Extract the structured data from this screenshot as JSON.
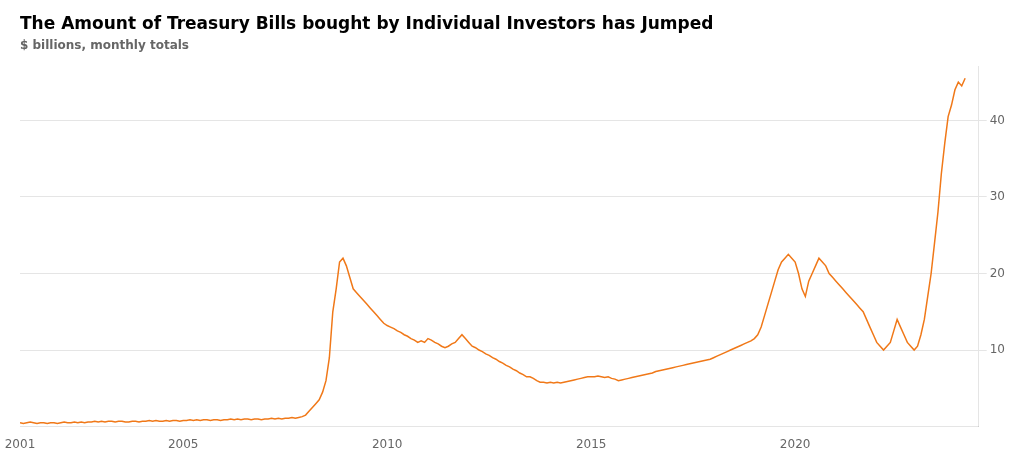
{
  "chart_data": {
    "type": "line",
    "title": "The Amount of Treasury Bills bought by Individual Investors has Jumped",
    "subtitle": "$ billions, monthly totals",
    "color": "#F07818",
    "grid": "y",
    "xlim": [
      2001.0,
      2024.5
    ],
    "xticks": [
      2001,
      2005,
      2010,
      2015,
      2020
    ],
    "ylim": [
      0,
      47
    ],
    "yticks": [
      10,
      20,
      30,
      40
    ],
    "x": [
      2001.0,
      2001.083,
      2001.167,
      2001.25,
      2001.333,
      2001.417,
      2001.5,
      2001.583,
      2001.667,
      2001.75,
      2001.833,
      2001.917,
      2002.0,
      2002.083,
      2002.167,
      2002.25,
      2002.333,
      2002.417,
      2002.5,
      2002.583,
      2002.667,
      2002.75,
      2002.833,
      2002.917,
      2003.0,
      2003.083,
      2003.167,
      2003.25,
      2003.333,
      2003.417,
      2003.5,
      2003.583,
      2003.667,
      2003.75,
      2003.833,
      2003.917,
      2004.0,
      2004.083,
      2004.167,
      2004.25,
      2004.333,
      2004.417,
      2004.5,
      2004.583,
      2004.667,
      2004.75,
      2004.833,
      2004.917,
      2005.0,
      2005.083,
      2005.167,
      2005.25,
      2005.333,
      2005.417,
      2005.5,
      2005.583,
      2005.667,
      2005.75,
      2005.833,
      2005.917,
      2006.0,
      2006.083,
      2006.167,
      2006.25,
      2006.333,
      2006.417,
      2006.5,
      2006.583,
      2006.667,
      2006.75,
      2006.833,
      2006.917,
      2007.0,
      2007.083,
      2007.167,
      2007.25,
      2007.333,
      2007.417,
      2007.5,
      2007.583,
      2007.667,
      2007.75,
      2007.833,
      2007.917,
      2008.0,
      2008.083,
      2008.167,
      2008.25,
      2008.333,
      2008.417,
      2008.5,
      2008.583,
      2008.667,
      2008.75,
      2008.833,
      2008.917,
      2009.0,
      2009.083,
      2009.167,
      2009.25,
      2009.333,
      2009.417,
      2009.5,
      2009.583,
      2009.667,
      2009.75,
      2009.833,
      2009.917,
      2010.0,
      2010.083,
      2010.167,
      2010.25,
      2010.333,
      2010.417,
      2010.5,
      2010.583,
      2010.667,
      2010.75,
      2010.833,
      2010.917,
      2011.0,
      2011.083,
      2011.167,
      2011.25,
      2011.333,
      2011.417,
      2011.5,
      2011.583,
      2011.667,
      2011.75,
      2011.833,
      2011.917,
      2012.0,
      2012.083,
      2012.167,
      2012.25,
      2012.333,
      2012.417,
      2012.5,
      2012.583,
      2012.667,
      2012.75,
      2012.833,
      2012.917,
      2013.0,
      2013.083,
      2013.167,
      2013.25,
      2013.333,
      2013.417,
      2013.5,
      2013.583,
      2013.667,
      2013.75,
      2013.833,
      2013.917,
      2014.0,
      2014.083,
      2014.167,
      2014.25,
      2014.333,
      2014.417,
      2014.5,
      2014.583,
      2014.667,
      2014.75,
      2014.833,
      2014.917,
      2015.0,
      2015.083,
      2015.167,
      2015.25,
      2015.333,
      2015.417,
      2015.5,
      2015.583,
      2015.667,
      2015.75,
      2015.833,
      2015.917,
      2016.0,
      2016.083,
      2016.167,
      2016.25,
      2016.333,
      2016.417,
      2016.5,
      2016.583,
      2016.667,
      2016.75,
      2016.833,
      2016.917,
      2017.0,
      2017.083,
      2017.167,
      2017.25,
      2017.333,
      2017.417,
      2017.5,
      2017.583,
      2017.667,
      2017.75,
      2017.833,
      2017.917,
      2018.0,
      2018.083,
      2018.167,
      2018.25,
      2018.333,
      2018.417,
      2018.5,
      2018.583,
      2018.667,
      2018.75,
      2018.833,
      2018.917,
      2019.0,
      2019.083,
      2019.167,
      2019.25,
      2019.333,
      2019.417,
      2019.5,
      2019.583,
      2019.667,
      2019.75,
      2019.833,
      2019.917,
      2020.0,
      2020.083,
      2020.167,
      2020.25,
      2020.333,
      2020.417,
      2020.5,
      2020.583,
      2020.667,
      2020.75,
      2020.833,
      2020.917,
      2021.0,
      2021.083,
      2021.167,
      2021.25,
      2021.333,
      2021.417,
      2021.5,
      2021.583,
      2021.667,
      2021.75,
      2021.833,
      2021.917,
      2022.0,
      2022.083,
      2022.167,
      2022.25,
      2022.333,
      2022.417,
      2022.5,
      2022.583,
      2022.667,
      2022.75,
      2022.833,
      2022.917,
      2023.0,
      2023.083,
      2023.167,
      2023.25,
      2023.333,
      2023.417,
      2023.5,
      2023.583,
      2023.667,
      2023.75,
      2023.833,
      2023.917,
      2024.0,
      2024.083,
      2024.167
    ],
    "values": [
      0.5,
      0.4,
      0.5,
      0.6,
      0.5,
      0.4,
      0.5,
      0.5,
      0.4,
      0.5,
      0.5,
      0.4,
      0.5,
      0.6,
      0.5,
      0.5,
      0.6,
      0.5,
      0.6,
      0.5,
      0.6,
      0.6,
      0.7,
      0.6,
      0.7,
      0.6,
      0.7,
      0.7,
      0.6,
      0.7,
      0.7,
      0.6,
      0.6,
      0.7,
      0.7,
      0.6,
      0.7,
      0.7,
      0.8,
      0.7,
      0.8,
      0.7,
      0.7,
      0.8,
      0.7,
      0.8,
      0.8,
      0.7,
      0.8,
      0.8,
      0.9,
      0.8,
      0.9,
      0.8,
      0.9,
      0.9,
      0.8,
      0.9,
      0.9,
      0.8,
      0.9,
      0.9,
      1.0,
      0.9,
      1.0,
      0.9,
      1.0,
      1.0,
      0.9,
      1.0,
      1.0,
      0.9,
      1.0,
      1.0,
      1.1,
      1.0,
      1.1,
      1.0,
      1.1,
      1.1,
      1.2,
      1.1,
      1.2,
      1.3,
      1.5,
      2.0,
      2.5,
      3.0,
      3.5,
      4.5,
      6.0,
      9.0,
      15.0,
      18.0,
      21.5,
      22.0,
      21.0,
      19.5,
      18.0,
      17.5,
      17.0,
      16.5,
      16.0,
      15.5,
      15.0,
      14.5,
      14.0,
      13.5,
      13.2,
      13.0,
      12.8,
      12.5,
      12.3,
      12.0,
      11.8,
      11.5,
      11.3,
      11.0,
      11.2,
      11.0,
      11.5,
      11.3,
      11.0,
      10.8,
      10.5,
      10.3,
      10.5,
      10.8,
      11.0,
      11.5,
      12.0,
      11.5,
      11.0,
      10.5,
      10.3,
      10.0,
      9.8,
      9.5,
      9.3,
      9.0,
      8.8,
      8.5,
      8.3,
      8.0,
      7.8,
      7.5,
      7.3,
      7.0,
      6.8,
      6.5,
      6.5,
      6.3,
      6.0,
      5.8,
      5.8,
      5.7,
      5.8,
      5.7,
      5.8,
      5.7,
      5.8,
      5.9,
      6.0,
      6.1,
      6.2,
      6.3,
      6.4,
      6.5,
      6.5,
      6.5,
      6.6,
      6.5,
      6.4,
      6.5,
      6.3,
      6.2,
      6.0,
      6.1,
      6.2,
      6.3,
      6.4,
      6.5,
      6.6,
      6.7,
      6.8,
      6.9,
      7.0,
      7.2,
      7.3,
      7.4,
      7.5,
      7.6,
      7.7,
      7.8,
      7.9,
      8.0,
      8.1,
      8.2,
      8.3,
      8.4,
      8.5,
      8.6,
      8.7,
      8.8,
      9.0,
      9.2,
      9.4,
      9.6,
      9.8,
      10.0,
      10.2,
      10.4,
      10.6,
      10.8,
      11.0,
      11.2,
      11.5,
      12.0,
      13.0,
      14.5,
      16.0,
      17.5,
      19.0,
      20.5,
      21.5,
      22.0,
      22.5,
      22.0,
      21.5,
      20.0,
      18.0,
      17.0,
      19.0,
      20.0,
      21.0,
      22.0,
      21.5,
      21.0,
      20.0,
      19.5,
      19.0,
      18.5,
      18.0,
      17.5,
      17.0,
      16.5,
      16.0,
      15.5,
      15.0,
      14.0,
      13.0,
      12.0,
      11.0,
      10.5,
      10.0,
      10.5,
      11.0,
      12.5,
      14.0,
      13.0,
      12.0,
      11.0,
      10.5,
      10.0,
      10.5,
      12.0,
      14.0,
      17.0,
      20.0,
      24.0,
      28.0,
      33.0,
      37.0,
      40.5,
      42.0,
      44.0,
      45.0,
      44.5,
      45.5
    ]
  }
}
